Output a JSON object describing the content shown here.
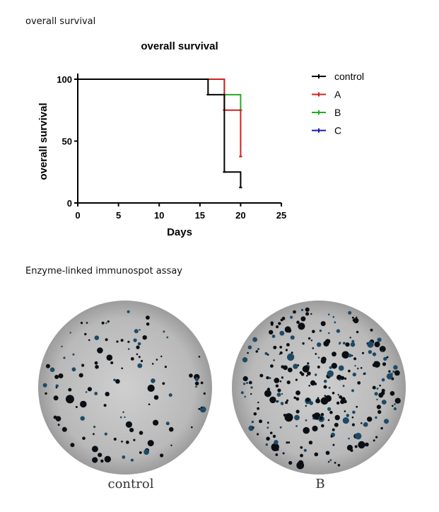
{
  "sections": {
    "survival_label": "overall survival",
    "elispot_label": "Enzyme-linked immunospot assay"
  },
  "chart_data": {
    "type": "line",
    "subtype": "kaplan-meier step",
    "title": "overall survival",
    "xlabel": "Days",
    "ylabel": "overall survival",
    "xlim": [
      0,
      25
    ],
    "ylim": [
      0,
      100
    ],
    "xticks": [
      0,
      5,
      10,
      15,
      20,
      25
    ],
    "yticks": [
      0,
      50,
      100
    ],
    "grid": false,
    "legend_position": "right",
    "series": [
      {
        "name": "control",
        "color": "#000000",
        "x": [
          0,
          16,
          16,
          18,
          18,
          20,
          20
        ],
        "y": [
          100,
          100,
          87.5,
          87.5,
          25,
          25,
          12.5
        ]
      },
      {
        "name": "A",
        "color": "#d42020",
        "x": [
          0,
          18,
          18,
          20,
          20
        ],
        "y": [
          100,
          100,
          75,
          75,
          37.5
        ]
      },
      {
        "name": "B",
        "color": "#22aa22",
        "x": [
          0,
          16,
          16,
          18,
          18,
          20,
          20
        ],
        "y": [
          100,
          100,
          100,
          100,
          87.5,
          87.5,
          75
        ]
      },
      {
        "name": "C",
        "color": "#1a1aaa",
        "x": [],
        "y": []
      }
    ]
  },
  "wells": {
    "left_caption": "control",
    "right_caption": "B",
    "left_spot_density": "low",
    "right_spot_density": "high",
    "plate_color": "#b9b9b9",
    "spot_color": "#0b0f14",
    "spot_blue": "#1e4a66"
  }
}
